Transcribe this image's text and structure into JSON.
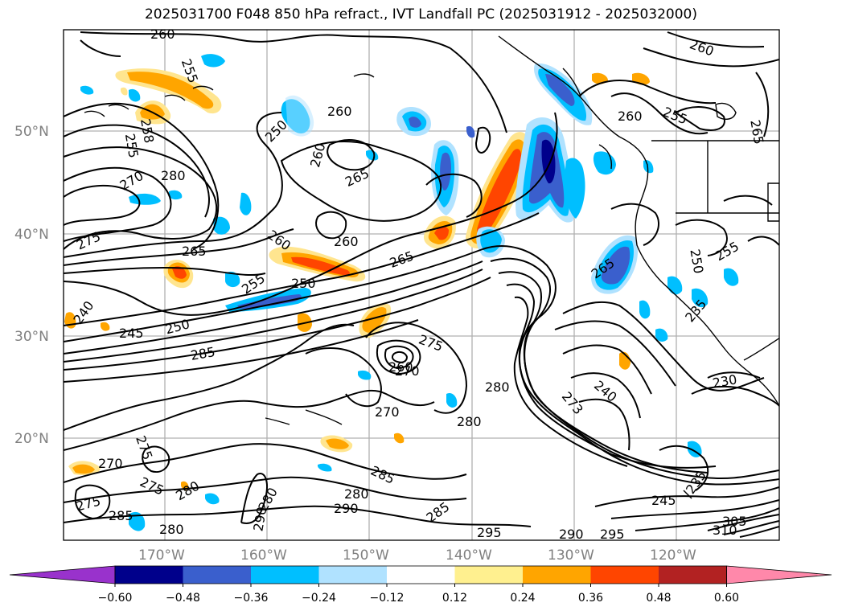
{
  "title": "2025031700 F048 850 hPa refract., IVT Landfall PC (2025031912 - 2025032000)",
  "lat_labels": [
    "50°N",
    "40°N",
    "30°N",
    "20°N"
  ],
  "lon_labels": [
    "170°W",
    "160°W",
    "150°W",
    "140°W",
    "130°W",
    "120°W"
  ],
  "colorbar": {
    "ticks": [
      "−0.60",
      "−0.48",
      "−0.36",
      "−0.24",
      "−0.12",
      "0.12",
      "0.24",
      "0.36",
      "0.48",
      "0.60"
    ],
    "colors": [
      "#9932cc",
      "#00008b",
      "#3a5fcd",
      "#00bfff",
      "#b0e2ff",
      "#ffffff",
      "#fff08f",
      "#ffa500",
      "#ff4500",
      "#b22222",
      "#ff88aa"
    ]
  },
  "contour_labels": [
    "260",
    "255",
    "260",
    "250",
    "260",
    "265",
    "260",
    "255",
    "260",
    "258",
    "255",
    "270",
    "280",
    "275",
    "265",
    "260",
    "260",
    "265",
    "255",
    "250",
    "240",
    "245",
    "250",
    "285",
    "275",
    "260",
    "270",
    "240",
    "230",
    "280",
    "270",
    "280",
    "273",
    "275",
    "270",
    "285",
    "290",
    "280",
    "275",
    "280",
    "285",
    "275",
    "285",
    "295",
    "290",
    "295",
    "310",
    "305",
    "280",
    "245",
    "235",
    "265",
    "255",
    "250",
    "235",
    "265",
    "280",
    "290"
  ]
}
